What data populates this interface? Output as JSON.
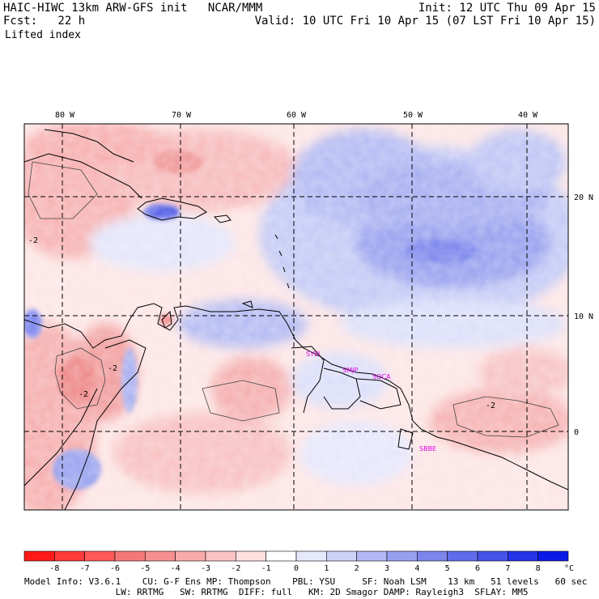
{
  "header": {
    "line1_left": "HAIC-HIWC 13km ARW-GFS init   NCAR/MMM",
    "line1_right": "Init: 12 UTC Thu 09 Apr 15",
    "line2_left": "Fcst:   22 h",
    "line2_right": "Valid: 10 UTC Fri 10 Apr 15 (07 LST Fri 10 Apr 15)",
    "field_name": "Lifted index"
  },
  "map": {
    "lon_labels": [
      "80 W",
      "70 W",
      "60 W",
      "50 W",
      "40 W"
    ],
    "lat_labels": [
      "20 N",
      "10 N",
      "0"
    ],
    "stations": [
      "SYEI",
      "SMJP",
      "SOCA",
      "SBBE"
    ],
    "contour_labels": [
      "-2",
      "-2",
      "-2",
      "-2"
    ]
  },
  "colorbar": {
    "ticks": [
      "-8",
      "-7",
      "-6",
      "-5",
      "-4",
      "-3",
      "-2",
      "-1",
      "0",
      "1",
      "2",
      "3",
      "4",
      "5",
      "6",
      "7",
      "8"
    ],
    "unit": "°C",
    "colors": [
      "#ff1a1a",
      "#ff3a3a",
      "#ff5a5a",
      "#f57878",
      "#f59090",
      "#f8aaaa",
      "#fbc3c3",
      "#fde0e0",
      "#ffffff",
      "#e6e8fb",
      "#cdd2f7",
      "#b2b8f3",
      "#979ff0",
      "#7c86ec",
      "#616ceb",
      "#4652e8",
      "#2433e6",
      "#0a1ae6"
    ]
  },
  "footer": {
    "line1": "Model Info: V3.6.1    CU: G-F Ens MP: Thompson    PBL: YSU     SF: Noah LSM    13 km   51 levels   60 sec",
    "line2": "                 LW: RRTMG   SW: RRTMG  DIFF: full   KM: 2D Smagor DAMP: Rayleigh3  SFLAY: MM5"
  }
}
